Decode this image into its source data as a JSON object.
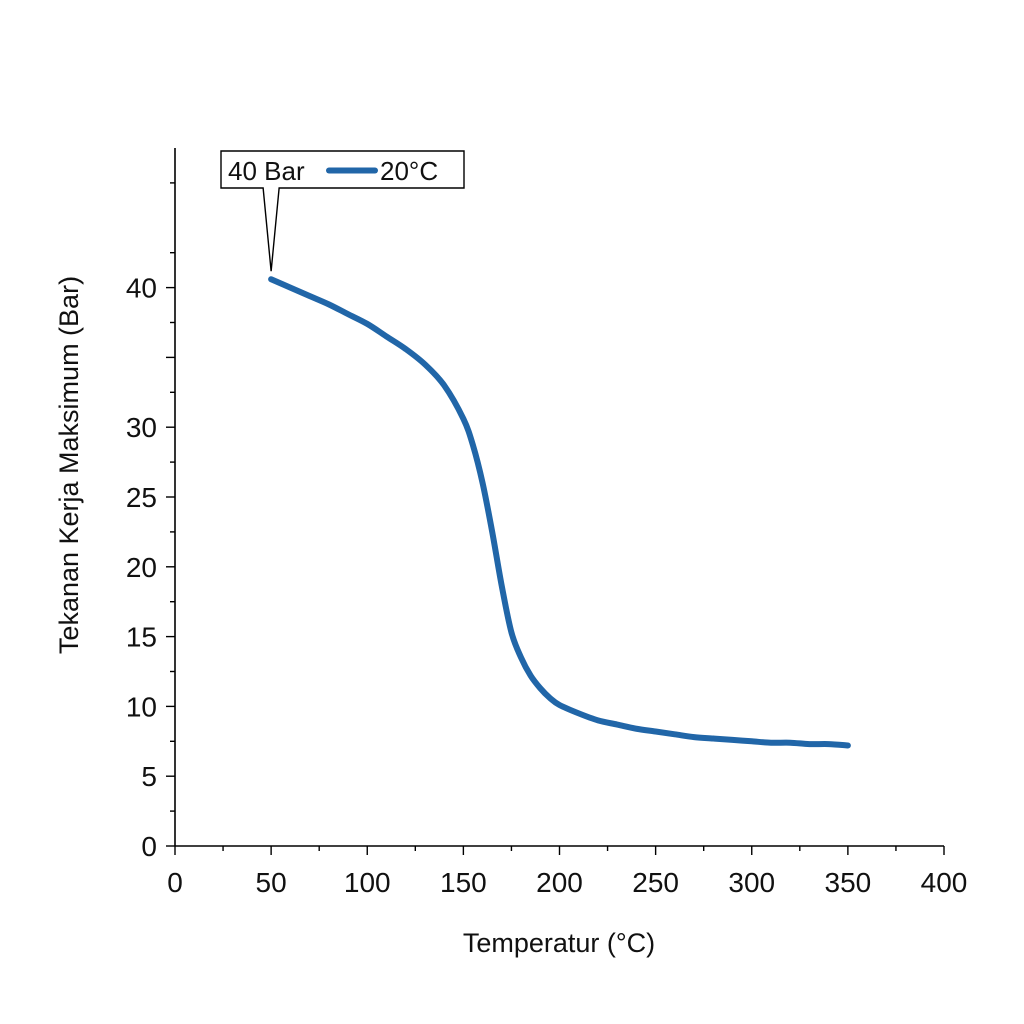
{
  "chart_data": {
    "type": "line",
    "title": "",
    "xlabel": "Temperatur (°C)",
    "ylabel": "Tekanan Kerja Maksimum (Bar)",
    "xlim": [
      0,
      400
    ],
    "ylim": [
      0,
      50
    ],
    "x_ticks": [
      0,
      50,
      100,
      150,
      200,
      250,
      300,
      350,
      400
    ],
    "y_ticks": [
      0,
      5,
      10,
      15,
      20,
      25,
      30,
      35,
      40
    ],
    "y_tick_labels": [
      "0",
      "5",
      "10",
      "15",
      "20",
      "25",
      "30",
      "",
      "40"
    ],
    "grid": false,
    "legend_position": "top-left",
    "annotation": "40 Bar",
    "series": [
      {
        "name": "20°C",
        "color": "#2166a8",
        "x": [
          50,
          60,
          70,
          80,
          90,
          100,
          110,
          120,
          130,
          140,
          150,
          155,
          160,
          165,
          170,
          175,
          180,
          185,
          190,
          195,
          200,
          210,
          220,
          230,
          240,
          250,
          260,
          270,
          280,
          290,
          300,
          310,
          320,
          330,
          340,
          350
        ],
        "y": [
          40.6,
          40.0,
          39.4,
          38.8,
          38.1,
          37.4,
          36.5,
          35.6,
          34.5,
          33.0,
          30.6,
          28.7,
          26.0,
          22.5,
          18.6,
          15.3,
          13.5,
          12.2,
          11.3,
          10.6,
          10.1,
          9.5,
          9.0,
          8.7,
          8.4,
          8.2,
          8.0,
          7.8,
          7.7,
          7.6,
          7.5,
          7.4,
          7.4,
          7.3,
          7.3,
          7.2
        ]
      }
    ]
  }
}
